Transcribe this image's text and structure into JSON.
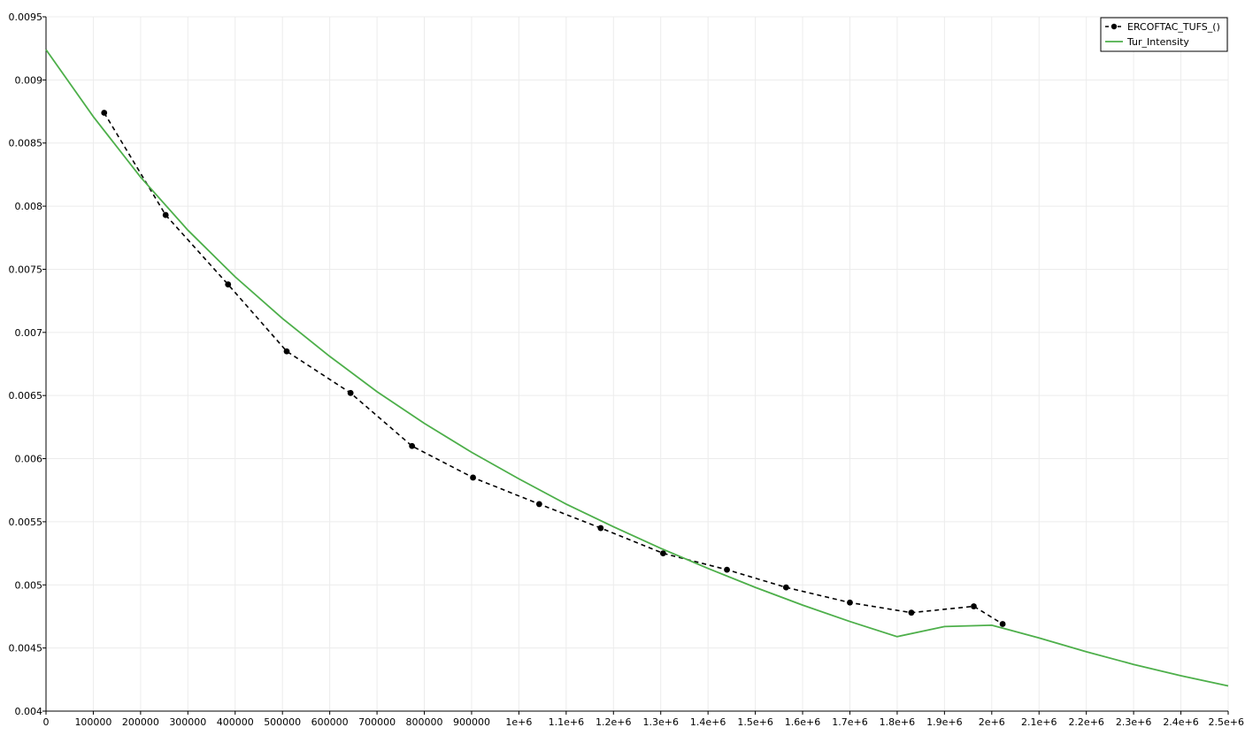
{
  "chart_data": {
    "type": "line",
    "xlim": [
      0,
      2500000
    ],
    "ylim": [
      0.004,
      0.0095
    ],
    "x_ticks": [
      0,
      100000,
      200000,
      300000,
      400000,
      500000,
      600000,
      700000,
      800000,
      900000,
      1000000,
      1100000,
      1200000,
      1300000,
      1400000,
      1500000,
      1600000,
      1700000,
      1800000,
      1900000,
      2000000,
      2100000,
      2200000,
      2300000,
      2400000,
      2500000
    ],
    "x_tick_labels": [
      "0",
      "100000",
      "200000",
      "300000",
      "400000",
      "500000",
      "600000",
      "700000",
      "800000",
      "900000",
      "1e+6",
      "1.1e+6",
      "1.2e+6",
      "1.3e+6",
      "1.4e+6",
      "1.5e+6",
      "1.6e+6",
      "1.7e+6",
      "1.8e+6",
      "1.9e+6",
      "2e+6",
      "2.1e+6",
      "2.2e+6",
      "2.3e+6",
      "2.4e+6",
      "2.5e+6"
    ],
    "y_ticks": [
      0.004,
      0.0045,
      0.005,
      0.0055,
      0.006,
      0.0065,
      0.007,
      0.0075,
      0.008,
      0.0085,
      0.009,
      0.0095
    ],
    "y_tick_labels": [
      "0.004",
      "0.0045",
      "0.005",
      "0.0055",
      "0.006",
      "0.0065",
      "0.007",
      "0.0075",
      "0.008",
      "0.0085",
      "0.009",
      "0.0095"
    ],
    "grid": true,
    "legend_position": "top-right",
    "series": [
      {
        "name": "ERCOFTAC_TUFS_()",
        "color": "#000000",
        "style": "dashed-markers",
        "x": [
          123000,
          253000,
          385000,
          509000,
          644000,
          774000,
          903000,
          1043000,
          1173000,
          1305000,
          1440000,
          1565000,
          1700000,
          1830000,
          1962000,
          2023000
        ],
        "y": [
          0.00874,
          0.00793,
          0.00738,
          0.00685,
          0.00652,
          0.0061,
          0.00585,
          0.00564,
          0.00545,
          0.00525,
          0.00512,
          0.00498,
          0.00486,
          0.00478,
          0.00483,
          0.00469
        ]
      },
      {
        "name": "Tur_Intensity",
        "color": "#4daf4a",
        "style": "solid",
        "x": [
          0,
          100000,
          200000,
          300000,
          400000,
          500000,
          600000,
          700000,
          800000,
          900000,
          1000000,
          1100000,
          1200000,
          1300000,
          1400000,
          1500000,
          1600000,
          1700000,
          1800000,
          1900000,
          2000000,
          2100000,
          2200000,
          2300000,
          2400000,
          2500000
        ],
        "y": [
          0.00924,
          0.00871,
          0.00823,
          0.00781,
          0.00744,
          0.00711,
          0.00681,
          0.00653,
          0.00628,
          0.00605,
          0.00584,
          0.00564,
          0.00546,
          0.00529,
          0.00513,
          0.00498,
          0.00484,
          0.00471,
          0.00459,
          0.00467,
          0.00468,
          0.00458,
          0.00447,
          0.00437,
          0.00428,
          0.0042
        ]
      }
    ]
  }
}
